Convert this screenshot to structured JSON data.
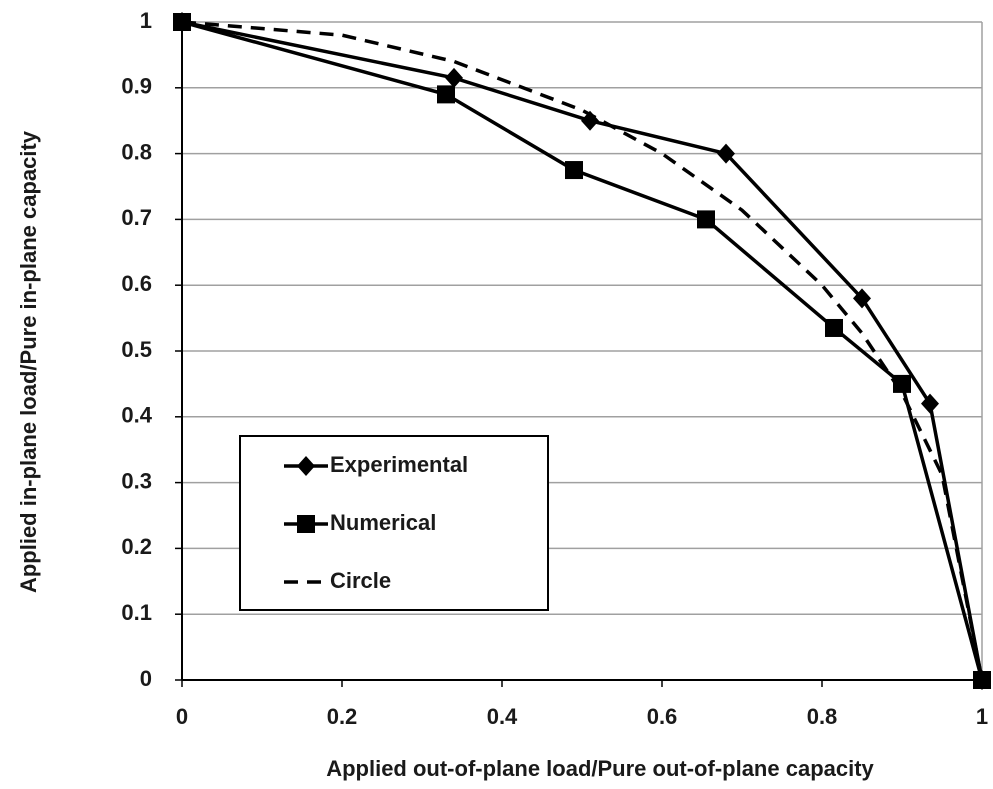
{
  "chart_data": {
    "type": "line",
    "xlabel": "Applied out-of-plane load/Pure out-of-plane capacity",
    "ylabel": "Applied in-plane load/Pure in-plane capacity",
    "xlim": [
      0,
      1
    ],
    "ylim": [
      0,
      1
    ],
    "xticks": [
      0,
      0.2,
      0.4,
      0.6,
      0.8,
      1
    ],
    "yticks": [
      0,
      0.1,
      0.2,
      0.3,
      0.4,
      0.5,
      0.6,
      0.7,
      0.8,
      0.9,
      1
    ],
    "grid": true,
    "legend": "lower left",
    "series": [
      {
        "name": "Experimental",
        "color": "#000000",
        "marker": "diamond",
        "style": "solid",
        "x": [
          0,
          0.34,
          0.51,
          0.68,
          0.85,
          0.935,
          1
        ],
        "values": [
          1,
          0.915,
          0.85,
          0.8,
          0.58,
          0.42,
          0
        ]
      },
      {
        "name": "Numerical",
        "color": "#000000",
        "marker": "square",
        "style": "solid",
        "x": [
          0,
          0.33,
          0.49,
          0.655,
          0.815,
          0.9,
          1
        ],
        "values": [
          1,
          0.89,
          0.775,
          0.7,
          0.535,
          0.45,
          0
        ]
      },
      {
        "name": "Circle",
        "color": "#000000",
        "marker": "none",
        "style": "dashed",
        "x": [
          0,
          0.2,
          0.34,
          0.5,
          0.6,
          0.7,
          0.8,
          0.85,
          0.9,
          0.95,
          1
        ],
        "values": [
          1,
          0.98,
          0.94,
          0.866,
          0.8,
          0.714,
          0.6,
          0.527,
          0.436,
          0.312,
          0
        ]
      }
    ]
  }
}
